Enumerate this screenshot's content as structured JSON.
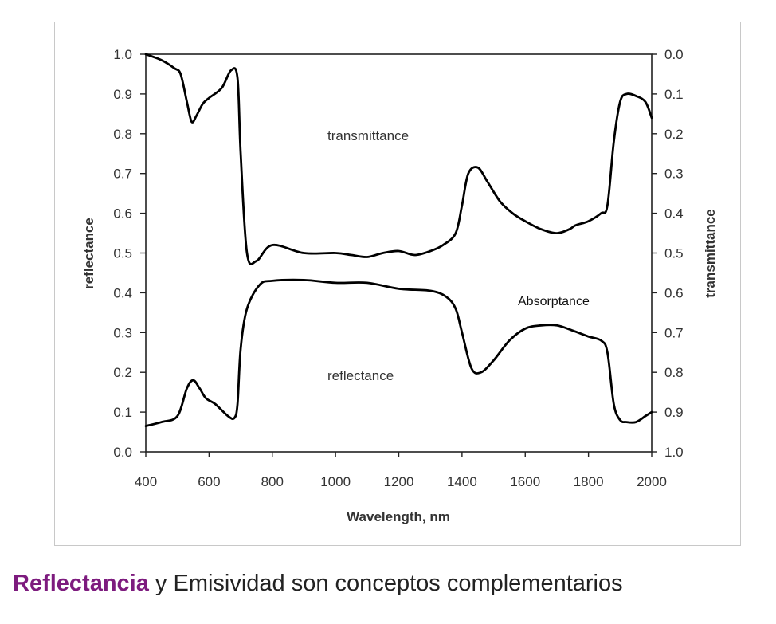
{
  "chart_data": {
    "type": "line",
    "xlabel": "Wavelength, nm",
    "ylabel": "reflectance",
    "y2label": "transmittance",
    "xlim": [
      400,
      2000
    ],
    "ylim": [
      0.0,
      1.0
    ],
    "y2lim": [
      1.0,
      0.0
    ],
    "x_ticks": [
      "400",
      "600",
      "800",
      "1000",
      "1200",
      "1400",
      "1600",
      "1800",
      "2000"
    ],
    "y_ticks": [
      "0.0",
      "0.1",
      "0.2",
      "0.3",
      "0.4",
      "0.5",
      "0.6",
      "0.7",
      "0.8",
      "0.9",
      "1.0"
    ],
    "y2_ticks": [
      "1.0",
      "0.9",
      "0.8",
      "0.7",
      "0.6",
      "0.5",
      "0.4",
      "0.3",
      "0.2",
      "0.1",
      "0.0"
    ],
    "grid": false,
    "annotations": {
      "transmittance": "transmittance",
      "reflectance": "reflectance",
      "absorptance": "Absorptance"
    },
    "series": [
      {
        "axis": "left",
        "x": [
          400,
          450,
          500,
          530,
          550,
          570,
          590,
          620,
          660,
          680,
          690,
          700,
          720,
          760,
          800,
          900,
          1000,
          1100,
          1200,
          1300,
          1350,
          1380,
          1400,
          1430,
          1460,
          1500,
          1550,
          1600,
          1650,
          1700,
          1750,
          1800,
          1840,
          1860,
          1880,
          1900,
          1920,
          1950,
          1980,
          2000
        ],
        "values": [
          0.065,
          0.075,
          0.09,
          0.16,
          0.18,
          0.16,
          0.135,
          0.12,
          0.09,
          0.085,
          0.12,
          0.26,
          0.36,
          0.42,
          0.43,
          0.432,
          0.425,
          0.425,
          0.41,
          0.405,
          0.39,
          0.36,
          0.3,
          0.21,
          0.2,
          0.23,
          0.28,
          0.31,
          0.318,
          0.318,
          0.305,
          0.29,
          0.28,
          0.25,
          0.12,
          0.08,
          0.075,
          0.075,
          0.09,
          0.1
        ]
      },
      {
        "axis": "right",
        "x": [
          400,
          450,
          490,
          510,
          530,
          545,
          560,
          580,
          600,
          640,
          670,
          690,
          700,
          720,
          750,
          800,
          900,
          1000,
          1050,
          1100,
          1150,
          1200,
          1250,
          1300,
          1340,
          1380,
          1400,
          1420,
          1450,
          1480,
          1520,
          1560,
          1600,
          1650,
          1700,
          1740,
          1760,
          1800,
          1840,
          1860,
          1880,
          1900,
          1920,
          1950,
          1980,
          2000
        ],
        "values": [
          0.0,
          0.015,
          0.035,
          0.05,
          0.12,
          0.17,
          0.155,
          0.125,
          0.11,
          0.085,
          0.04,
          0.06,
          0.25,
          0.5,
          0.52,
          0.48,
          0.5,
          0.5,
          0.505,
          0.51,
          0.5,
          0.495,
          0.505,
          0.495,
          0.48,
          0.45,
          0.38,
          0.3,
          0.285,
          0.32,
          0.37,
          0.4,
          0.42,
          0.44,
          0.45,
          0.44,
          0.43,
          0.42,
          0.4,
          0.38,
          0.22,
          0.12,
          0.1,
          0.105,
          0.12,
          0.16
        ]
      }
    ]
  },
  "caption": {
    "highlight": "Reflectancia",
    "rest": " y Emisividad son conceptos complementarios"
  }
}
